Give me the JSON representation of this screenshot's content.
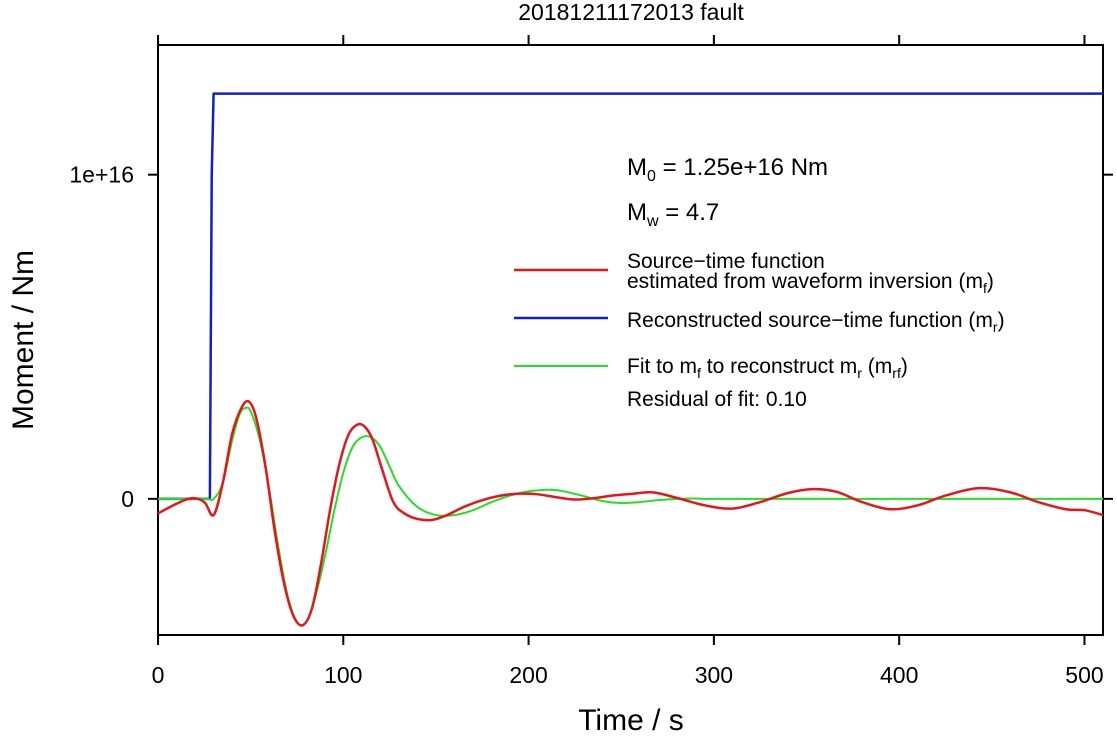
{
  "chart_data": {
    "type": "line",
    "title": "20181211172013 fault",
    "xlabel": "Time / s",
    "ylabel": "Moment / Nm",
    "xlim": [
      0,
      510
    ],
    "ylim": [
      -4200000000000000.0,
      1.4e+16
    ],
    "x_ticks": [
      0,
      100,
      200,
      300,
      400,
      500
    ],
    "x_tick_labels": [
      "0",
      "100",
      "200",
      "300",
      "400",
      "500"
    ],
    "y_ticks": [
      0,
      1e+16
    ],
    "y_tick_labels": [
      "0",
      "1e+16"
    ],
    "grid": false,
    "legend_position": "right",
    "annotations": {
      "m0": {
        "main": "M",
        "sub": "0",
        "rest": " = 1.25e+16 Nm"
      },
      "mw": {
        "main": "M",
        "sub": "w",
        "rest": " = 4.7"
      },
      "residual": "Residual of fit: 0.10"
    },
    "series": [
      {
        "key": "red",
        "color": "#e8141c",
        "legend_lines": [
          {
            "text": "Source−time function",
            "sub": "",
            "after": ""
          },
          {
            "text": "estimated from waveform inversion (m",
            "sub": "f",
            "after": ")"
          }
        ],
        "x": [
          0,
          10,
          18,
          25,
          30,
          35,
          40,
          45,
          49,
          53,
          58,
          63,
          68,
          73,
          78,
          83,
          88,
          93,
          98,
          103,
          108,
          112,
          116,
          121,
          127,
          133,
          140,
          148,
          156,
          165,
          175,
          185,
          195,
          205,
          215,
          225,
          235,
          245,
          255,
          267,
          280,
          295,
          310,
          325,
          340,
          353,
          366,
          380,
          395,
          410,
          425,
          443,
          460,
          475,
          490,
          500,
          510
        ],
        "y": [
          -450000000000000.0,
          -150000000000000.0,
          20000000000000.0,
          -100000000000000.0,
          -500000000000000.0,
          500000000000000.0,
          2000000000000000.0,
          2800000000000000.0,
          3000000000000000.0,
          2500000000000000.0,
          1000000000000000.0,
          -1000000000000000.0,
          -2600000000000000.0,
          -3600000000000000.0,
          -3900000000000000.0,
          -3400000000000000.0,
          -2000000000000000.0,
          -300000000000000.0,
          1100000000000000.0,
          2000000000000000.0,
          2300000000000000.0,
          2200000000000000.0,
          1800000000000000.0,
          900000000000000.0,
          -100000000000000.0,
          -450000000000000.0,
          -620000000000000.0,
          -650000000000000.0,
          -500000000000000.0,
          -250000000000000.0,
          -40000000000000.0,
          100000000000000.0,
          160000000000000.0,
          140000000000000.0,
          50000000000000.0,
          -20000000000000.0,
          20000000000000.0,
          100000000000000.0,
          150000000000000.0,
          200000000000000.0,
          30000000000000.0,
          -200000000000000.0,
          -300000000000000.0,
          -100000000000000.0,
          180000000000000.0,
          300000000000000.0,
          220000000000000.0,
          -100000000000000.0,
          -320000000000000.0,
          -200000000000000.0,
          100000000000000.0,
          330000000000000.0,
          200000000000000.0,
          -100000000000000.0,
          -320000000000000.0,
          -350000000000000.0,
          -500000000000000.0
        ]
      },
      {
        "key": "blue",
        "color": "#1020c8",
        "legend_lines": [
          {
            "text": "Reconstructed source−time function (m",
            "sub": "r",
            "after": ")"
          }
        ],
        "x": [
          0,
          28,
          29,
          30,
          510
        ],
        "y": [
          0,
          0,
          1e+16,
          1.25e+16,
          1.25e+16
        ]
      },
      {
        "key": "green",
        "color": "#22e022",
        "legend_lines": [
          {
            "text": "Fit to m",
            "sub": "f",
            "after": " to reconstruct m"
          },
          {
            "text": "",
            "sub": "r",
            "after": " (m"
          },
          {
            "text": "",
            "sub": "rf",
            "after": ")"
          }
        ],
        "x": [
          0,
          25,
          30,
          35,
          40,
          44,
          47,
          50,
          55,
          60,
          65,
          70,
          75,
          80,
          85,
          90,
          95,
          100,
          105,
          110,
          115,
          120,
          125,
          130,
          140,
          150,
          160,
          170,
          180,
          190,
          200,
          210,
          215,
          220,
          230,
          240,
          250,
          260,
          270,
          280,
          290,
          300,
          350,
          400,
          450,
          510
        ],
        "y": [
          0,
          0,
          0,
          500000000000000.0,
          1800000000000000.0,
          2600000000000000.0,
          2800000000000000.0,
          2700000000000000.0,
          1800000000000000.0,
          300000000000000.0,
          -1500000000000000.0,
          -3000000000000000.0,
          -3800000000000000.0,
          -3800000000000000.0,
          -3000000000000000.0,
          -1800000000000000.0,
          -400000000000000.0,
          800000000000000.0,
          1600000000000000.0,
          1900000000000000.0,
          1900000000000000.0,
          1600000000000000.0,
          1000000000000000.0,
          400000000000000.0,
          -250000000000000.0,
          -500000000000000.0,
          -500000000000000.0,
          -350000000000000.0,
          -100000000000000.0,
          100000000000000.0,
          230000000000000.0,
          280000000000000.0,
          270000000000000.0,
          220000000000000.0,
          80000000000000.0,
          -70000000000000.0,
          -130000000000000.0,
          -100000000000000.0,
          -40000000000000.0,
          0,
          10000000000000.0,
          0,
          0,
          0,
          0,
          0
        ]
      }
    ]
  }
}
